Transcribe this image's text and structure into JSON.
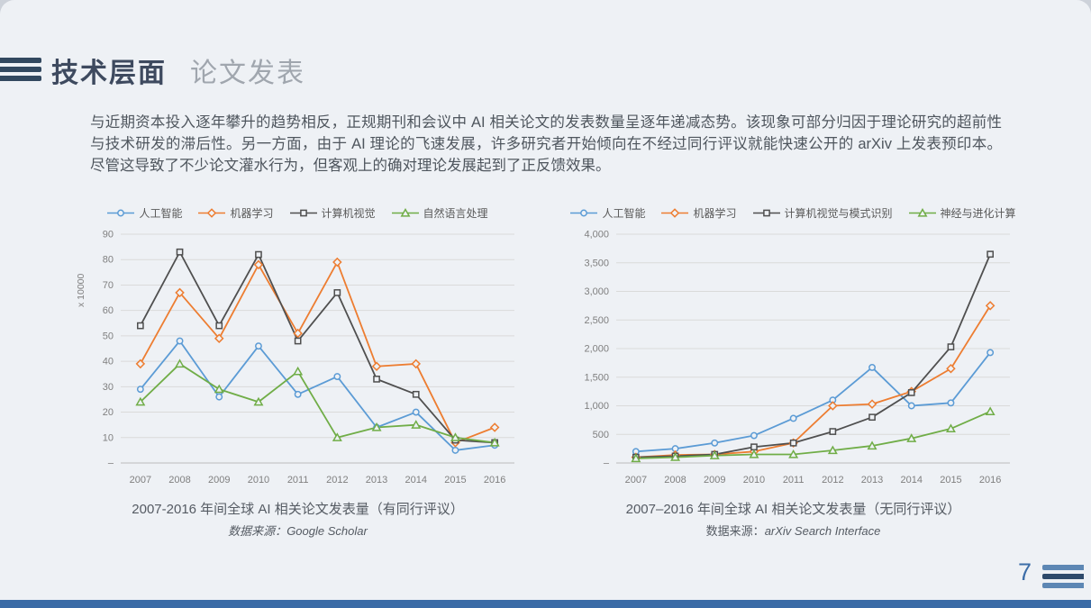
{
  "header": {
    "title": "技术层面",
    "subtitle": "论文发表"
  },
  "paragraph": "与近期资本投入逐年攀升的趋势相反，正规期刊和会议中 AI 相关论文的发表数量呈逐年递减态势。该现象可部分归因于理论研究的超前性与技术研发的滞后性。另一方面，由于 AI 理论的飞速发展，许多研究者开始倾向在不经过同行评议就能快速公开的 arXiv 上发表预印本。尽管这导致了不少论文灌水行为，但客观上的确对理论发展起到了正反馈效果。",
  "page_number": "7",
  "colors": {
    "blue": "#5B9BD5",
    "orange": "#ED7D31",
    "dark": "#4F4F4F",
    "green": "#70AD47",
    "accent_bar": "#3A6BA6",
    "title": "#3E4A5F"
  },
  "icons": {
    "top_left_decoration": "triple-bars-icon",
    "bottom_right_decoration": "triple-bars-icon"
  },
  "chart_data": [
    {
      "type": "line",
      "title": "2007-2016 年间全球 AI 相关论文发表量（有同行评议）",
      "source_prefix": "数据来源：",
      "source_value": "Google Scholar",
      "source_prefix_italic": true,
      "y_axis_label": "x 10000",
      "xlabel": "",
      "ylabel": "x 10000",
      "legend_position": "top",
      "grid": true,
      "categories": [
        "2007",
        "2008",
        "2009",
        "2010",
        "2011",
        "2012",
        "2013",
        "2014",
        "2015",
        "2016"
      ],
      "ylim": [
        0,
        90
      ],
      "ytick_values": [
        0,
        10,
        20,
        30,
        40,
        50,
        60,
        70,
        80,
        90
      ],
      "ytick_labels": [
        "–",
        "10",
        "20",
        "30",
        "40",
        "50",
        "60",
        "70",
        "80",
        "90"
      ],
      "series": [
        {
          "name": "人工智能",
          "color": "#5B9BD5",
          "marker": "circle",
          "values": [
            29,
            48,
            26,
            46,
            27,
            34,
            14,
            20,
            5,
            7
          ]
        },
        {
          "name": "机器学习",
          "color": "#ED7D31",
          "marker": "diamond",
          "values": [
            39,
            67,
            49,
            78,
            51,
            79,
            38,
            39,
            8,
            14
          ]
        },
        {
          "name": "计算机视觉",
          "color": "#4F4F4F",
          "marker": "square",
          "values": [
            54,
            83,
            54,
            82,
            48,
            67,
            33,
            27,
            9,
            8
          ]
        },
        {
          "name": "自然语言处理",
          "color": "#70AD47",
          "marker": "triangle",
          "values": [
            24,
            39,
            29,
            24,
            36,
            10,
            14,
            15,
            10,
            8
          ]
        }
      ]
    },
    {
      "type": "line",
      "title": "2007–2016 年间全球 AI 相关论文发表量（无同行评议）",
      "source_prefix": "数据来源：",
      "source_value": "arXiv Search Interface",
      "source_prefix_italic": false,
      "y_axis_label": "",
      "xlabel": "",
      "ylabel": "",
      "legend_position": "top",
      "grid": true,
      "categories": [
        "2007",
        "2008",
        "2009",
        "2010",
        "2011",
        "2012",
        "2013",
        "2014",
        "2015",
        "2016"
      ],
      "ylim": [
        0,
        4000
      ],
      "ytick_values": [
        0,
        500,
        1000,
        1500,
        2000,
        2500,
        3000,
        3500,
        4000
      ],
      "ytick_labels": [
        "–",
        "500",
        "1,000",
        "1,500",
        "2,000",
        "2,500",
        "3,000",
        "3,500",
        "4,000"
      ],
      "series": [
        {
          "name": "人工智能",
          "color": "#5B9BD5",
          "marker": "circle",
          "values": [
            200,
            250,
            350,
            480,
            780,
            1100,
            1670,
            1000,
            1050,
            1930
          ]
        },
        {
          "name": "机器学习",
          "color": "#ED7D31",
          "marker": "diamond",
          "values": [
            100,
            140,
            150,
            200,
            350,
            1000,
            1030,
            1250,
            1650,
            2750
          ]
        },
        {
          "name": "计算机视觉与模式识别",
          "color": "#4F4F4F",
          "marker": "square",
          "values": [
            100,
            120,
            150,
            280,
            350,
            550,
            800,
            1230,
            2030,
            3650
          ]
        },
        {
          "name": "神经与进化计算",
          "color": "#70AD47",
          "marker": "triangle",
          "values": [
            80,
            100,
            130,
            150,
            150,
            220,
            300,
            430,
            600,
            900
          ]
        }
      ]
    }
  ]
}
